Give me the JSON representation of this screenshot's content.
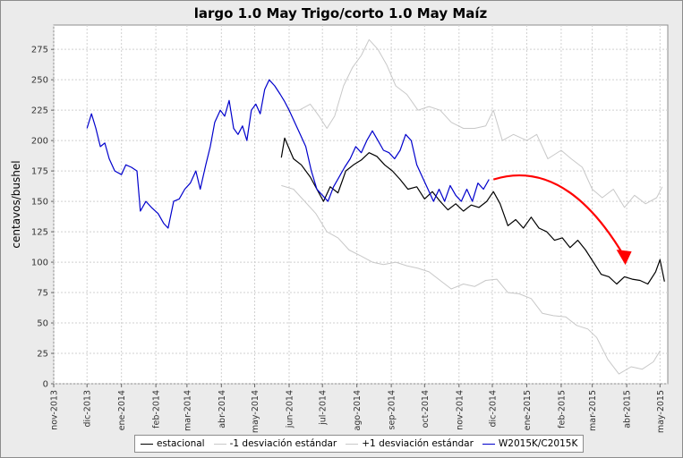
{
  "title": "largo 1.0 May Trigo/corto 1.0 May Maíz",
  "chart_data": {
    "type": "line",
    "title": "largo 1.0 May Trigo/corto 1.0 May Maíz",
    "xlabel": "",
    "ylabel": "centavos/bushel",
    "ylim": [
      0,
      295
    ],
    "yticks": [
      0,
      25,
      50,
      75,
      100,
      125,
      150,
      175,
      200,
      225,
      250,
      275
    ],
    "xlim": [
      "2013-11-01",
      "2015-05-08"
    ],
    "xticks": [
      "nov-2013",
      "dic-2013",
      "ene-2014",
      "feb-2014",
      "mar-2014",
      "abr-2014",
      "may-2014",
      "jun-2014",
      "jul-2014",
      "ago-2014",
      "sep-2014",
      "oct-2014",
      "nov-2014",
      "dic-2014",
      "ene-2015",
      "feb-2015",
      "mar-2015",
      "abr-2015",
      "may-2015"
    ],
    "grid": true,
    "legend_position": "bottom",
    "series": [
      {
        "name": "estacional",
        "color": "#000000",
        "points": [
          [
            "2014-05-25",
            186
          ],
          [
            "2014-05-28",
            202
          ],
          [
            "2014-06-05",
            185
          ],
          [
            "2014-06-12",
            180
          ],
          [
            "2014-06-20",
            170
          ],
          [
            "2014-06-26",
            160
          ],
          [
            "2014-07-02",
            150
          ],
          [
            "2014-07-08",
            162
          ],
          [
            "2014-07-15",
            157
          ],
          [
            "2014-07-22",
            175
          ],
          [
            "2014-07-29",
            180
          ],
          [
            "2014-08-05",
            184
          ],
          [
            "2014-08-12",
            190
          ],
          [
            "2014-08-19",
            187
          ],
          [
            "2014-08-26",
            180
          ],
          [
            "2014-09-02",
            175
          ],
          [
            "2014-09-09",
            168
          ],
          [
            "2014-09-16",
            160
          ],
          [
            "2014-09-24",
            162
          ],
          [
            "2014-10-01",
            152
          ],
          [
            "2014-10-08",
            158
          ],
          [
            "2014-10-15",
            150
          ],
          [
            "2014-10-22",
            143
          ],
          [
            "2014-10-29",
            148
          ],
          [
            "2014-11-05",
            142
          ],
          [
            "2014-11-12",
            147
          ],
          [
            "2014-11-19",
            145
          ],
          [
            "2014-11-26",
            150
          ],
          [
            "2014-12-02",
            158
          ],
          [
            "2014-12-08",
            148
          ],
          [
            "2014-12-15",
            130
          ],
          [
            "2014-12-22",
            135
          ],
          [
            "2014-12-29",
            128
          ],
          [
            "2015-01-05",
            137
          ],
          [
            "2015-01-12",
            128
          ],
          [
            "2015-01-19",
            125
          ],
          [
            "2015-01-26",
            118
          ],
          [
            "2015-02-02",
            120
          ],
          [
            "2015-02-09",
            112
          ],
          [
            "2015-02-16",
            118
          ],
          [
            "2015-02-23",
            110
          ],
          [
            "2015-03-02",
            100
          ],
          [
            "2015-03-09",
            90
          ],
          [
            "2015-03-16",
            88
          ],
          [
            "2015-03-23",
            82
          ],
          [
            "2015-03-30",
            88
          ],
          [
            "2015-04-06",
            86
          ],
          [
            "2015-04-13",
            85
          ],
          [
            "2015-04-20",
            82
          ],
          [
            "2015-04-27",
            92
          ],
          [
            "2015-05-01",
            102
          ],
          [
            "2015-05-05",
            84
          ]
        ]
      },
      {
        "name": "-1 desviación estándar",
        "color": "#c8c8c8",
        "points": [
          [
            "2014-05-25",
            163
          ],
          [
            "2014-06-05",
            160
          ],
          [
            "2014-06-15",
            150
          ],
          [
            "2014-06-25",
            140
          ],
          [
            "2014-07-05",
            125
          ],
          [
            "2014-07-15",
            120
          ],
          [
            "2014-07-25",
            110
          ],
          [
            "2014-08-05",
            105
          ],
          [
            "2014-08-15",
            100
          ],
          [
            "2014-08-25",
            98
          ],
          [
            "2014-09-05",
            100
          ],
          [
            "2014-09-15",
            97
          ],
          [
            "2014-09-25",
            95
          ],
          [
            "2014-10-05",
            92
          ],
          [
            "2014-10-15",
            85
          ],
          [
            "2014-10-25",
            78
          ],
          [
            "2014-11-05",
            82
          ],
          [
            "2014-11-15",
            80
          ],
          [
            "2014-11-25",
            85
          ],
          [
            "2014-12-05",
            86
          ],
          [
            "2014-12-15",
            75
          ],
          [
            "2014-12-25",
            74
          ],
          [
            "2015-01-05",
            70
          ],
          [
            "2015-01-15",
            58
          ],
          [
            "2015-01-25",
            56
          ],
          [
            "2015-02-05",
            55
          ],
          [
            "2015-02-15",
            48
          ],
          [
            "2015-02-25",
            45
          ],
          [
            "2015-03-05",
            38
          ],
          [
            "2015-03-15",
            20
          ],
          [
            "2015-03-25",
            8
          ],
          [
            "2015-04-05",
            14
          ],
          [
            "2015-04-15",
            12
          ],
          [
            "2015-04-25",
            18
          ],
          [
            "2015-05-01",
            27
          ]
        ]
      },
      {
        "name": "+1 desviación estándar",
        "color": "#c8c8c8",
        "points": [
          [
            "2014-05-25",
            225
          ],
          [
            "2014-06-01",
            225
          ],
          [
            "2014-06-10",
            225
          ],
          [
            "2014-06-20",
            230
          ],
          [
            "2014-06-28",
            220
          ],
          [
            "2014-07-05",
            210
          ],
          [
            "2014-07-12",
            220
          ],
          [
            "2014-07-20",
            245
          ],
          [
            "2014-07-28",
            260
          ],
          [
            "2014-08-05",
            270
          ],
          [
            "2014-08-12",
            283
          ],
          [
            "2014-08-20",
            275
          ],
          [
            "2014-08-28",
            262
          ],
          [
            "2014-09-05",
            245
          ],
          [
            "2014-09-15",
            238
          ],
          [
            "2014-09-25",
            225
          ],
          [
            "2014-10-05",
            228
          ],
          [
            "2014-10-15",
            225
          ],
          [
            "2014-10-25",
            215
          ],
          [
            "2014-11-05",
            210
          ],
          [
            "2014-11-15",
            210
          ],
          [
            "2014-11-25",
            212
          ],
          [
            "2014-12-02",
            225
          ],
          [
            "2014-12-10",
            200
          ],
          [
            "2014-12-20",
            205
          ],
          [
            "2015-01-01",
            200
          ],
          [
            "2015-01-10",
            205
          ],
          [
            "2015-01-20",
            185
          ],
          [
            "2015-02-01",
            192
          ],
          [
            "2015-02-10",
            185
          ],
          [
            "2015-02-20",
            178
          ],
          [
            "2015-03-01",
            160
          ],
          [
            "2015-03-10",
            153
          ],
          [
            "2015-03-20",
            160
          ],
          [
            "2015-03-30",
            145
          ],
          [
            "2015-04-08",
            155
          ],
          [
            "2015-04-18",
            148
          ],
          [
            "2015-04-28",
            153
          ],
          [
            "2015-05-03",
            162
          ]
        ]
      },
      {
        "name": "W2015K/C2015K",
        "color": "#0000cc",
        "points": [
          [
            "2013-12-01",
            210
          ],
          [
            "2013-12-05",
            222
          ],
          [
            "2013-12-09",
            210
          ],
          [
            "2013-12-13",
            195
          ],
          [
            "2013-12-17",
            198
          ],
          [
            "2013-12-21",
            185
          ],
          [
            "2013-12-26",
            175
          ],
          [
            "2014-01-01",
            172
          ],
          [
            "2014-01-05",
            180
          ],
          [
            "2014-01-10",
            178
          ],
          [
            "2014-01-15",
            175
          ],
          [
            "2014-01-18",
            142
          ],
          [
            "2014-01-23",
            150
          ],
          [
            "2014-01-28",
            145
          ],
          [
            "2014-02-03",
            140
          ],
          [
            "2014-02-08",
            132
          ],
          [
            "2014-02-12",
            128
          ],
          [
            "2014-02-17",
            150
          ],
          [
            "2014-02-22",
            152
          ],
          [
            "2014-02-27",
            160
          ],
          [
            "2014-03-04",
            165
          ],
          [
            "2014-03-09",
            175
          ],
          [
            "2014-03-13",
            160
          ],
          [
            "2014-03-18",
            180
          ],
          [
            "2014-03-22",
            195
          ],
          [
            "2014-03-26",
            215
          ],
          [
            "2014-03-31",
            225
          ],
          [
            "2014-04-04",
            220
          ],
          [
            "2014-04-08",
            233
          ],
          [
            "2014-04-12",
            210
          ],
          [
            "2014-04-16",
            205
          ],
          [
            "2014-04-20",
            212
          ],
          [
            "2014-04-24",
            200
          ],
          [
            "2014-04-28",
            225
          ],
          [
            "2014-05-02",
            230
          ],
          [
            "2014-05-06",
            222
          ],
          [
            "2014-05-10",
            242
          ],
          [
            "2014-05-14",
            250
          ],
          [
            "2014-05-19",
            245
          ],
          [
            "2014-05-24",
            238
          ],
          [
            "2014-05-28",
            232
          ],
          [
            "2014-06-01",
            225
          ],
          [
            "2014-06-06",
            215
          ],
          [
            "2014-06-11",
            205
          ],
          [
            "2014-06-16",
            195
          ],
          [
            "2014-06-21",
            175
          ],
          [
            "2014-06-26",
            160
          ],
          [
            "2014-07-01",
            155
          ],
          [
            "2014-07-06",
            150
          ],
          [
            "2014-07-11",
            162
          ],
          [
            "2014-07-16",
            170
          ],
          [
            "2014-07-21",
            178
          ],
          [
            "2014-07-26",
            185
          ],
          [
            "2014-07-31",
            195
          ],
          [
            "2014-08-05",
            190
          ],
          [
            "2014-08-10",
            200
          ],
          [
            "2014-08-15",
            208
          ],
          [
            "2014-08-20",
            200
          ],
          [
            "2014-08-25",
            192
          ],
          [
            "2014-08-30",
            190
          ],
          [
            "2014-09-04",
            185
          ],
          [
            "2014-09-09",
            192
          ],
          [
            "2014-09-14",
            205
          ],
          [
            "2014-09-19",
            200
          ],
          [
            "2014-09-24",
            180
          ],
          [
            "2014-09-29",
            170
          ],
          [
            "2014-10-04",
            160
          ],
          [
            "2014-10-09",
            150
          ],
          [
            "2014-10-14",
            160
          ],
          [
            "2014-10-19",
            150
          ],
          [
            "2014-10-24",
            163
          ],
          [
            "2014-10-29",
            155
          ],
          [
            "2014-11-03",
            150
          ],
          [
            "2014-11-08",
            160
          ],
          [
            "2014-11-13",
            150
          ],
          [
            "2014-11-18",
            165
          ],
          [
            "2014-11-23",
            160
          ],
          [
            "2014-11-28",
            168
          ]
        ]
      }
    ],
    "annotation": {
      "type": "arrow",
      "color": "#ff0000",
      "from": [
        "2014-12-02",
        168
      ],
      "to": [
        "2015-03-30",
        100
      ]
    }
  },
  "legend": {
    "items": [
      {
        "name": "estacional",
        "color": "#000000"
      },
      {
        "name": "-1 desviación estándar",
        "color": "#c8c8c8"
      },
      {
        "name": "+1 desviación estándar",
        "color": "#c8c8c8"
      },
      {
        "name": "W2015K/C2015K",
        "color": "#0000cc"
      }
    ]
  }
}
